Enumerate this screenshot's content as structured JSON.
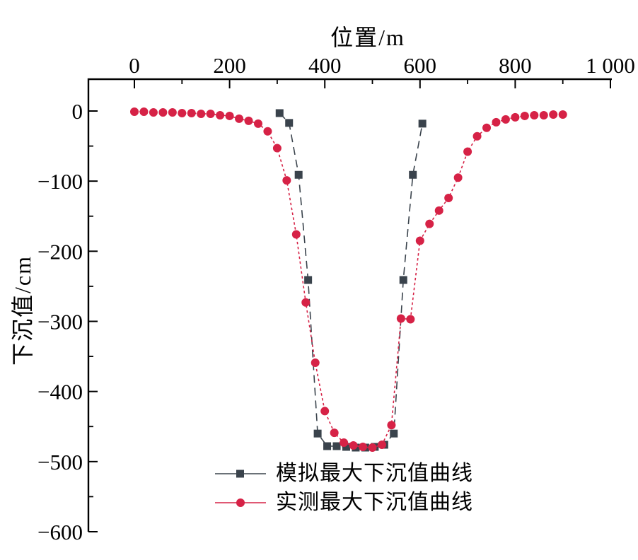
{
  "figure": {
    "background": "#ffffff",
    "axis_color": "#000000"
  },
  "chart_data": {
    "type": "line",
    "title": "",
    "xlabel": "位置/m",
    "ylabel": "下沉值/cm",
    "xlim": [
      -97,
      1003
    ],
    "ylim": [
      -600,
      45
    ],
    "grid": false,
    "legend_position": "inside-bottom-center",
    "x_major_ticks": [
      0,
      200,
      400,
      600,
      800,
      1000
    ],
    "x_major_labels": [
      "0",
      "200",
      "400",
      "600",
      "800",
      "1 000"
    ],
    "x_minor_ticks": [
      100,
      300,
      500,
      700,
      900
    ],
    "y_major_ticks": [
      0,
      -100,
      -200,
      -300,
      -400,
      -500,
      -600
    ],
    "y_major_labels": [
      "0",
      "−100",
      "−200",
      "−300",
      "−400",
      "−500",
      "−600"
    ],
    "y_minor_ticks": [
      -50,
      -150,
      -250,
      -350,
      -450,
      -550
    ],
    "series": [
      {
        "name": "模拟最大下沉值曲线",
        "marker": "square",
        "color": "#3a434c",
        "dash": "long",
        "x": [
          305,
          325,
          345,
          365,
          385,
          405,
          425,
          445,
          465,
          485,
          505,
          525,
          545,
          565,
          585,
          605
        ],
        "y": [
          -3,
          -17,
          -91,
          -241,
          -460,
          -478,
          -478,
          -479,
          -480,
          -480,
          -479,
          -476,
          -460,
          -241,
          -91,
          -18
        ]
      },
      {
        "name": "实测最大下沉值曲线",
        "marker": "circle",
        "color": "#d62246",
        "dash": "dot",
        "x": [
          0,
          20,
          40,
          60,
          80,
          100,
          120,
          140,
          160,
          180,
          200,
          220,
          240,
          260,
          280,
          300,
          320,
          340,
          360,
          380,
          400,
          420,
          440,
          460,
          480,
          500,
          520,
          540,
          560,
          580,
          600,
          620,
          640,
          660,
          680,
          700,
          720,
          740,
          760,
          780,
          800,
          820,
          840,
          860,
          880,
          900
        ],
        "y": [
          -1,
          -1,
          -2,
          -2,
          -2,
          -3,
          -3,
          -4,
          -4,
          -6,
          -7,
          -11,
          -14,
          -18,
          -29,
          -53,
          -99,
          -176,
          -273,
          -359,
          -428,
          -459,
          -473,
          -477,
          -479,
          -480,
          -476,
          -448,
          -296,
          -297,
          -185,
          -161,
          -142,
          -124,
          -95,
          -58,
          -36,
          -24,
          -16,
          -12,
          -9,
          -7,
          -6,
          -6,
          -5,
          -5
        ]
      }
    ]
  }
}
